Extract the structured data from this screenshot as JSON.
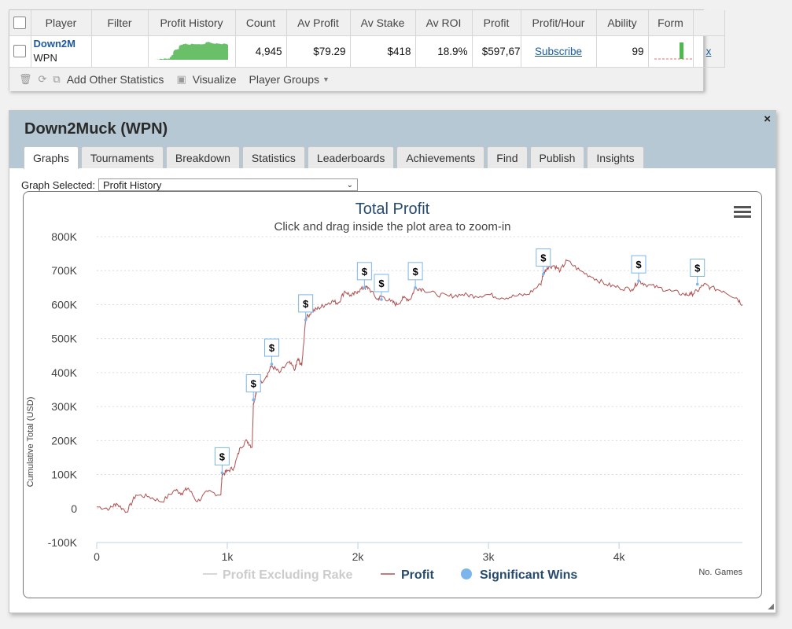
{
  "stats_table": {
    "columns": [
      "Player",
      "Filter",
      "Profit History",
      "Count",
      "Av Profit",
      "Av Stake",
      "Av ROI",
      "Profit",
      "Profit/Hour",
      "Ability",
      "Form"
    ],
    "row": {
      "player_name": "Down2M",
      "site": "WPN",
      "count": "4,945",
      "av_profit": "$79.29",
      "av_stake": "$418",
      "av_roi": "18.9%",
      "profit": "$597,67",
      "profit_hour": "Subscribe",
      "ability": "99",
      "remove": "x"
    },
    "colors": {
      "sparkline": "#6abf69",
      "form_bar": "#4fb84f",
      "form_baseline": "#e07070"
    }
  },
  "toolbar": {
    "add_stats": "Add Other Statistics",
    "visualize": "Visualize",
    "player_groups": "Player Groups"
  },
  "panel": {
    "title": "Down2Muck (WPN)",
    "close": "×",
    "tabs": [
      "Graphs",
      "Tournaments",
      "Breakdown",
      "Statistics",
      "Leaderboards",
      "Achievements",
      "Find",
      "Publish",
      "Insights"
    ],
    "active_tab": "Graphs",
    "graph_selected_label": "Graph Selected:",
    "graph_selected_value": "Profit History"
  },
  "chart_data": {
    "type": "line",
    "title": "Total Profit",
    "subtitle": "Click and drag inside the plot area to zoom-in",
    "ylabel": "Cumulative Total (USD)",
    "xlabel": "No. Games",
    "ylim": [
      -100000,
      800000
    ],
    "xlim": [
      0,
      4945
    ],
    "y_ticks": [
      -100000,
      0,
      100000,
      200000,
      300000,
      400000,
      500000,
      600000,
      700000,
      800000
    ],
    "y_tick_labels": [
      "-100K",
      "0",
      "100K",
      "200K",
      "300K",
      "400K",
      "500K",
      "600K",
      "700K",
      "800K"
    ],
    "x_ticks": [
      0,
      1000,
      2000,
      3000,
      4000
    ],
    "x_tick_labels": [
      "0",
      "1k",
      "2k",
      "3k",
      "4k"
    ],
    "grid": true,
    "legend": [
      "Profit Excluding Rake",
      "Profit",
      "Significant Wins"
    ],
    "legend_placement": "bottom",
    "colors": {
      "profit": "#b05050",
      "excluding_rake": "#cccccc",
      "significant": "#7cb5ec"
    },
    "series": [
      {
        "name": "Profit",
        "x": [
          0,
          100,
          150,
          230,
          300,
          400,
          500,
          600,
          650,
          700,
          770,
          850,
          950,
          960,
          1000,
          1050,
          1100,
          1150,
          1190,
          1200,
          1215,
          1230,
          1300,
          1340,
          1400,
          1470,
          1520,
          1540,
          1570,
          1600,
          1650,
          1700,
          1750,
          1800,
          1850,
          1900,
          1950,
          2000,
          2050,
          2080,
          2150,
          2180,
          2250,
          2300,
          2350,
          2400,
          2440,
          2500,
          2600,
          2700,
          2800,
          2900,
          3000,
          3100,
          3200,
          3300,
          3400,
          3420,
          3450,
          3500,
          3550,
          3600,
          3700,
          3800,
          3900,
          4000,
          4100,
          4150,
          4200,
          4300,
          4400,
          4500,
          4550,
          4600,
          4650,
          4700,
          4800,
          4900,
          4945
        ],
        "y": [
          5000,
          0,
          15000,
          -10000,
          40000,
          35000,
          20000,
          55000,
          45000,
          60000,
          20000,
          50000,
          40000,
          100000,
          110000,
          120000,
          180000,
          200000,
          180000,
          310000,
          330000,
          360000,
          390000,
          420000,
          400000,
          430000,
          410000,
          440000,
          420000,
          560000,
          580000,
          590000,
          600000,
          610000,
          605000,
          640000,
          625000,
          640000,
          650000,
          650000,
          615000,
          625000,
          610000,
          600000,
          620000,
          615000,
          650000,
          645000,
          630000,
          625000,
          630000,
          625000,
          630000,
          620000,
          625000,
          630000,
          660000,
          690000,
          710000,
          715000,
          700000,
          730000,
          700000,
          680000,
          660000,
          650000,
          645000,
          670000,
          660000,
          650000,
          640000,
          630000,
          630000,
          640000,
          660000,
          650000,
          640000,
          620000,
          600000
        ]
      },
      {
        "name": "Significant Wins",
        "x": [
          960,
          1200,
          1340,
          1600,
          2050,
          2180,
          2440,
          3420,
          4150,
          4600
        ],
        "y": [
          105000,
          320000,
          425000,
          555000,
          650000,
          615000,
          650000,
          690000,
          670000,
          660000
        ]
      }
    ]
  }
}
